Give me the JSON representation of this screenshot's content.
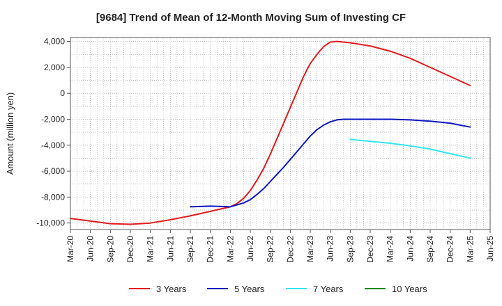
{
  "chart_data": {
    "type": "line",
    "title": "[9684]  Trend of Mean of 12-Month Moving Sum of Investing CF",
    "xlabel": "",
    "ylabel": "Amount (million yen)",
    "x_tick_labels": [
      "Mar-20",
      "Jun-20",
      "Sep-20",
      "Dec-20",
      "Mar-21",
      "Jun-21",
      "Sep-21",
      "Dec-21",
      "Mar-22",
      "Jun-22",
      "Sep-22",
      "Dec-22",
      "Mar-23",
      "Jun-23",
      "Sep-23",
      "Dec-23",
      "Mar-24",
      "Jun-24",
      "Sep-24",
      "Dec-24",
      "Mar-25",
      "Jun-25"
    ],
    "x_range": [
      "Mar-20",
      "Jun-25"
    ],
    "y_ticks": [
      4000,
      2000,
      0,
      -2000,
      -4000,
      -6000,
      -8000,
      -10000
    ],
    "y_tick_labels": [
      "4,000",
      "2,000",
      "0",
      "-2,000",
      "-4,000",
      "-6,000",
      "-8,000",
      "-10,000"
    ],
    "ylim": [
      -10500,
      4300
    ],
    "grid": true,
    "legend_position": "bottom",
    "series": [
      {
        "name": "3 Years",
        "color": "#e31a1c",
        "x": [
          "Mar-20",
          "Jun-20",
          "Sep-20",
          "Dec-20",
          "Mar-21",
          "Jun-21",
          "Sep-21",
          "Dec-21",
          "Mar-22",
          "Apr-22",
          "May-22",
          "Jun-22",
          "Jul-22",
          "Aug-22",
          "Sep-22",
          "Oct-22",
          "Nov-22",
          "Dec-22",
          "Jan-23",
          "Feb-23",
          "Mar-23",
          "Apr-23",
          "May-23",
          "Jun-23",
          "Jul-23",
          "Aug-23",
          "Sep-23",
          "Dec-23",
          "Mar-24",
          "Jun-24",
          "Sep-24",
          "Dec-24",
          "Mar-25"
        ],
        "values": [
          -9650,
          -9850,
          -10050,
          -10100,
          -10000,
          -9750,
          -9450,
          -9100,
          -8750,
          -8500,
          -8100,
          -7500,
          -6700,
          -5800,
          -4700,
          -3500,
          -2300,
          -1100,
          100,
          1300,
          2300,
          3000,
          3600,
          3950,
          4000,
          3950,
          3900,
          3650,
          3250,
          2700,
          2000,
          1300,
          600
        ]
      },
      {
        "name": "5 Years",
        "color": "#0a16c4",
        "x": [
          "Sep-21",
          "Dec-21",
          "Mar-22",
          "Apr-22",
          "May-22",
          "Jun-22",
          "Jul-22",
          "Aug-22",
          "Sep-22",
          "Oct-22",
          "Nov-22",
          "Dec-22",
          "Jan-23",
          "Feb-23",
          "Mar-23",
          "Apr-23",
          "May-23",
          "Jun-23",
          "Jul-23",
          "Aug-23",
          "Sep-23",
          "Dec-23",
          "Mar-24",
          "Jun-24",
          "Sep-24",
          "Dec-24",
          "Mar-25"
        ],
        "values": [
          -8750,
          -8700,
          -8750,
          -8600,
          -8450,
          -8200,
          -7800,
          -7350,
          -6800,
          -6250,
          -5700,
          -5100,
          -4500,
          -3900,
          -3300,
          -2800,
          -2450,
          -2200,
          -2050,
          -2000,
          -2000,
          -2000,
          -2000,
          -2050,
          -2150,
          -2300,
          -2600
        ]
      },
      {
        "name": "7 Years",
        "color": "#33e6f0",
        "x": [
          "Sep-23",
          "Dec-23",
          "Mar-24",
          "Jun-24",
          "Sep-24",
          "Dec-24",
          "Mar-25"
        ],
        "values": [
          -3550,
          -3700,
          -3850,
          -4050,
          -4300,
          -4650,
          -5000
        ]
      },
      {
        "name": "10 Years",
        "color": "#1a8a1a",
        "x": [],
        "values": []
      }
    ]
  }
}
